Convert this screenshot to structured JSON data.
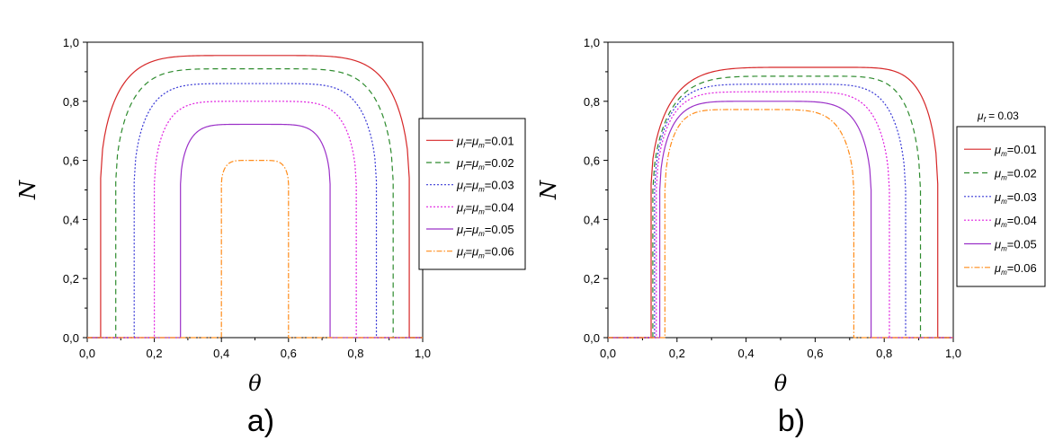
{
  "chart_data": [
    {
      "type": "line",
      "panel_label": "a)",
      "xlabel": "θ",
      "ylabel": "N",
      "xlim": [
        0,
        1
      ],
      "ylim": [
        0,
        1
      ],
      "xticks": [
        "0,0",
        "0,2",
        "0,4",
        "0,6",
        "0,8",
        "1,0"
      ],
      "yticks": [
        "0,0",
        "0,2",
        "0,4",
        "0,6",
        "0,8",
        "1,0"
      ],
      "grid": false,
      "legend_position": "right",
      "legend_title": "",
      "series": [
        {
          "name": "μf=μm=0.01",
          "legend_prefix": "μ",
          "legend_sub1": "f",
          "legend_mid": "=μ",
          "legend_sub2": "m",
          "legend_suffix": "=0.01",
          "color": "#d62728",
          "dash": "",
          "x0": 0.04,
          "x1": 0.96,
          "peak_x": 0.5,
          "peak": 0.955,
          "step": 0.54
        },
        {
          "name": "μf=μm=0.02",
          "legend_prefix": "μ",
          "legend_sub1": "f",
          "legend_mid": "=μ",
          "legend_sub2": "m",
          "legend_suffix": "=0.02",
          "color": "#2e8b2e",
          "dash": "6,4",
          "x0": 0.085,
          "x1": 0.912,
          "peak_x": 0.5,
          "peak": 0.91,
          "step": 0.53
        },
        {
          "name": "μf=μm=0.03",
          "legend_prefix": "μ",
          "legend_sub1": "f",
          "legend_mid": "=μ",
          "legend_sub2": "m",
          "legend_suffix": "=0.03",
          "color": "#3a3ad6",
          "dash": "2,2",
          "x0": 0.14,
          "x1": 0.862,
          "peak_x": 0.5,
          "peak": 0.86,
          "step": 0.53
        },
        {
          "name": "μf=μm=0.04",
          "legend_prefix": "μ",
          "legend_sub1": "f",
          "legend_mid": "=μ",
          "legend_sub2": "m",
          "legend_suffix": "=0.04",
          "color": "#e020e0",
          "dash": "2,2",
          "x0": 0.2,
          "x1": 0.802,
          "peak_x": 0.5,
          "peak": 0.8,
          "step": 0.52
        },
        {
          "name": "μf=μm=0.05",
          "legend_prefix": "μ",
          "legend_sub1": "f",
          "legend_mid": "=μ",
          "legend_sub2": "m",
          "legend_suffix": "=0.05",
          "color": "#9b30c8",
          "dash": "",
          "x0": 0.278,
          "x1": 0.724,
          "peak_x": 0.5,
          "peak": 0.722,
          "step": 0.52
        },
        {
          "name": "μf=μm=0.06",
          "legend_prefix": "μ",
          "legend_sub1": "f",
          "legend_mid": "=μ",
          "legend_sub2": "m",
          "legend_suffix": "=0.06",
          "color": "#ff8c1a",
          "dash": "6,2,1.5,2",
          "x0": 0.4,
          "x1": 0.6,
          "peak_x": 0.5,
          "peak": 0.6,
          "step": 0.52
        }
      ]
    },
    {
      "type": "line",
      "panel_label": "b)",
      "xlabel": "θ",
      "ylabel": "N",
      "xlim": [
        0,
        1
      ],
      "ylim": [
        0,
        1
      ],
      "xticks": [
        "0,0",
        "0,2",
        "0,4",
        "0,6",
        "0,8",
        "1,0"
      ],
      "yticks": [
        "0,0",
        "0,2",
        "0,4",
        "0,6",
        "0,8",
        "1,0"
      ],
      "grid": false,
      "legend_position": "right",
      "legend_title": "μf = 0.03",
      "legend_title_prefix": "μ",
      "legend_title_sub": "f",
      "legend_title_suffix": " = 0.03",
      "series": [
        {
          "name": "μm=0.01",
          "legend_prefix": "μ",
          "legend_sub1": "m",
          "legend_mid": "",
          "legend_sub2": "",
          "legend_suffix": "=0.01",
          "color": "#d62728",
          "dash": "",
          "x0": 0.125,
          "x1": 0.955,
          "peak_x": 0.62,
          "peak": 0.915,
          "step": 0.52
        },
        {
          "name": "μm=0.02",
          "legend_prefix": "μ",
          "legend_sub1": "m",
          "legend_mid": "",
          "legend_sub2": "",
          "legend_suffix": "=0.02",
          "color": "#2e8b2e",
          "dash": "6,4",
          "x0": 0.13,
          "x1": 0.905,
          "peak_x": 0.58,
          "peak": 0.885,
          "step": 0.5
        },
        {
          "name": "μm=0.03",
          "legend_prefix": "μ",
          "legend_sub1": "m",
          "legend_mid": "",
          "legend_sub2": "",
          "legend_suffix": "=0.03",
          "color": "#3a3ad6",
          "dash": "2,2",
          "x0": 0.135,
          "x1": 0.862,
          "peak_x": 0.52,
          "peak": 0.858,
          "step": 0.5
        },
        {
          "name": "μm=0.04",
          "legend_prefix": "μ",
          "legend_sub1": "m",
          "legend_mid": "",
          "legend_sub2": "",
          "legend_suffix": "=0.04",
          "color": "#e020e0",
          "dash": "2,2",
          "x0": 0.14,
          "x1": 0.815,
          "peak_x": 0.48,
          "peak": 0.832,
          "step": 0.5
        },
        {
          "name": "μm=0.05",
          "legend_prefix": "μ",
          "legend_sub1": "m",
          "legend_mid": "",
          "legend_sub2": "",
          "legend_suffix": "=0.05",
          "color": "#9b30c8",
          "dash": "",
          "x0": 0.15,
          "x1": 0.762,
          "peak_x": 0.45,
          "peak": 0.8,
          "step": 0.5
        },
        {
          "name": "μm=0.06",
          "legend_prefix": "μ",
          "legend_sub1": "m",
          "legend_mid": "",
          "legend_sub2": "",
          "legend_suffix": "=0.06",
          "color": "#ff8c1a",
          "dash": "6,2,1.5,2",
          "x0": 0.165,
          "x1": 0.712,
          "peak_x": 0.41,
          "peak": 0.772,
          "step": 0.5
        }
      ]
    }
  ]
}
